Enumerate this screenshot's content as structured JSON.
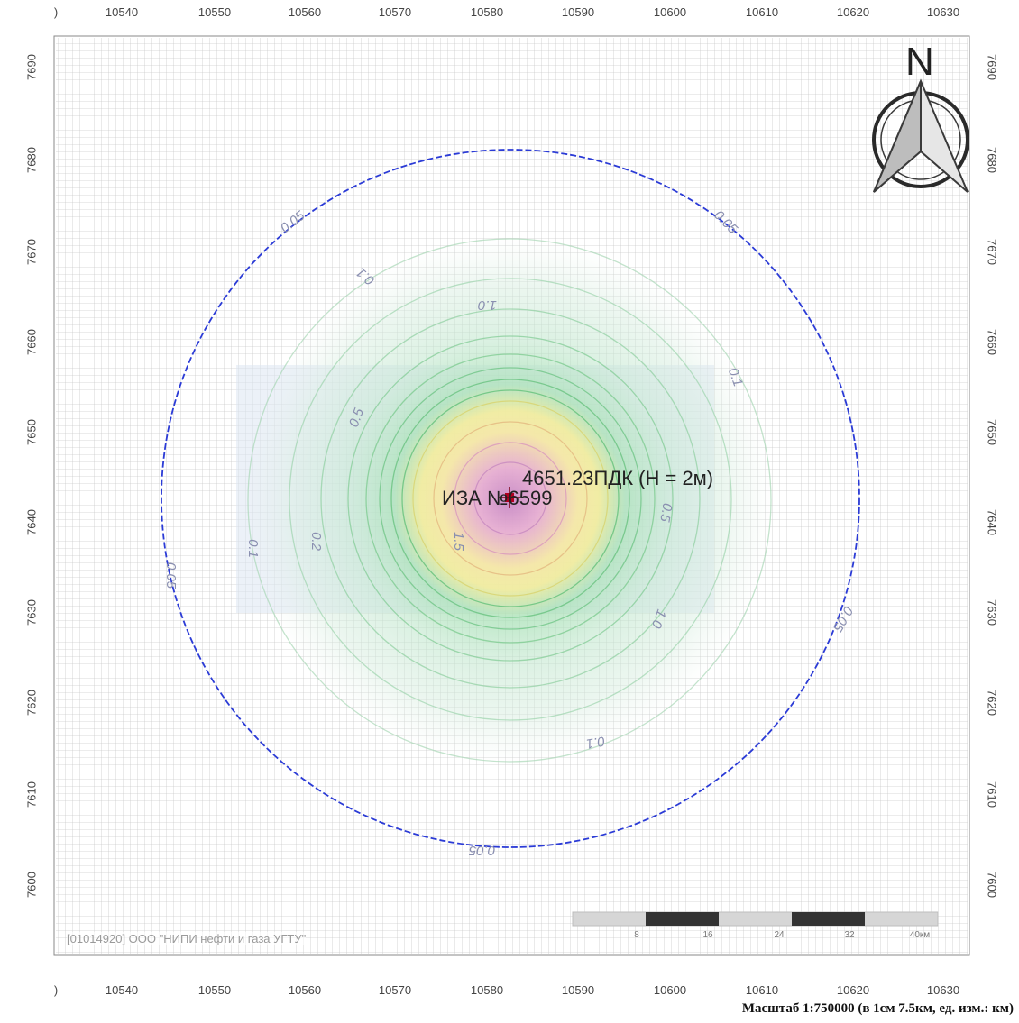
{
  "map": {
    "x_axis": {
      "ticks": [
        "",
        "10540",
        "10550",
        "10560",
        "10570",
        "10580",
        "10590",
        "10600",
        "10610",
        "10620",
        "10630"
      ],
      "top_first_fragment": ")",
      "bottom_first_fragment": ")"
    },
    "y_axis": {
      "ticks": [
        "7690",
        "7680",
        "7670",
        "7660",
        "7650",
        "7640",
        "7630",
        "7620",
        "7610",
        "7600"
      ]
    },
    "source_label": "ИЗА №6599",
    "max_label": "4651.23ПДК (H = 2м)",
    "north_label": "N",
    "copyright": "[01014920] ООО \"НИПИ нефти и газа УГТУ\"",
    "scale_title": "Масштаб 1:750000 (в 1см 7.5км, ед. изм.: км)",
    "scale_bar": {
      "labels": [
        "8",
        "16",
        "24",
        "32",
        "40км"
      ]
    },
    "isolines": {
      "outer": "0.05",
      "a": "0.1",
      "b": "0.5",
      "c": "1.0",
      "d": "0.2",
      "e": "1.5",
      "f": "0.5"
    },
    "colors": {
      "grid": "#c9c9c9",
      "boundary_circle": "#2b3bd6",
      "outer_zone": "#d6ecdf",
      "mid_zone": "#a9e3b8",
      "yellow_zone": "#f3eb9c",
      "center_zone": "#e8a6cf",
      "source_marker": "#b00020"
    }
  }
}
